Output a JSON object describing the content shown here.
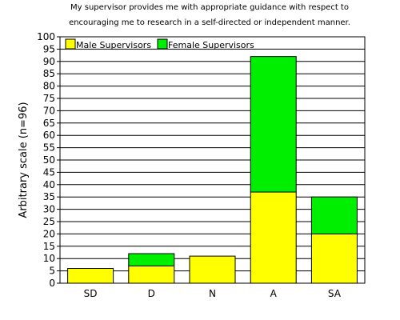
{
  "chart_data": {
    "type": "bar",
    "stacked": true,
    "title": [
      "My supervisor provides me with appropriate guidance with respect to",
      "encouraging me to research in a self-directed or independent manner."
    ],
    "xlabel": "",
    "ylabel": "Arbitrary scale (n=96)",
    "ylim": [
      0,
      100
    ],
    "ytick_step": 5,
    "grid": true,
    "legend_placement": "top-left",
    "categories": [
      "SD",
      "D",
      "N",
      "A",
      "SA"
    ],
    "series": [
      {
        "name": "Male Supervisors",
        "color": "#ffff00",
        "values": [
          6,
          7,
          11,
          37,
          20
        ]
      },
      {
        "name": "Female Supervisors",
        "color": "#00ee00",
        "values": [
          0,
          5,
          0,
          55,
          15
        ]
      }
    ]
  }
}
